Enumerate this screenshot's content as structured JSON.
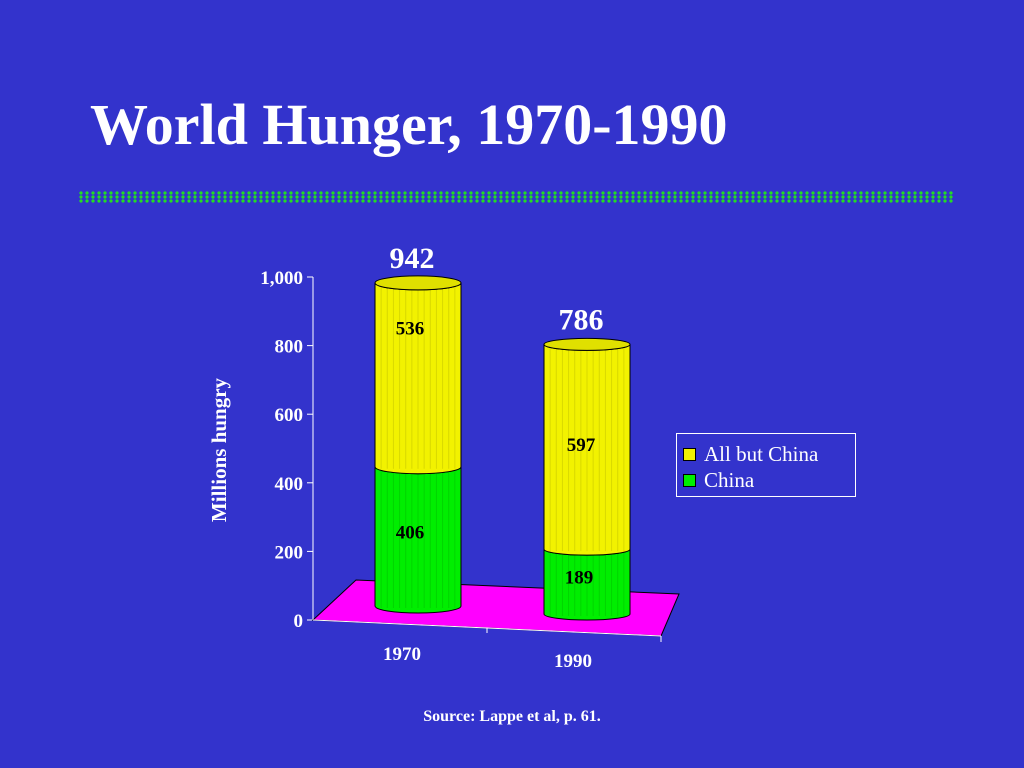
{
  "slide": {
    "title": "World Hunger, 1970-1990",
    "source": "Source: Lappe et al, p. 61."
  },
  "colors": {
    "background": "#3333cc",
    "china": "#00ee00",
    "all_but_china": "#f2f200",
    "floor": "#ff00ff",
    "title_rule": "#22dd22"
  },
  "chart_data": {
    "type": "bar",
    "stacked": true,
    "style": "3d-cylinder",
    "categories": [
      "1970",
      "1990"
    ],
    "series": [
      {
        "name": "China",
        "values": [
          406,
          189
        ]
      },
      {
        "name": "All but China",
        "values": [
          536,
          597
        ]
      }
    ],
    "totals": [
      942,
      786
    ],
    "total_labels": [
      "942",
      "786"
    ],
    "segment_labels": {
      "China": [
        "406",
        "189"
      ],
      "All but China": [
        "536",
        "597"
      ]
    },
    "ylabel": "Millions hungry",
    "xlabel": "",
    "ylim": [
      0,
      1000
    ],
    "yticks": [
      0,
      200,
      400,
      600,
      800,
      1000
    ],
    "ytick_labels": [
      "0",
      "200",
      "400",
      "600",
      "800",
      "1,000"
    ],
    "grid": false,
    "legend": {
      "position": "right",
      "entries": [
        "All but China",
        "China"
      ]
    }
  }
}
